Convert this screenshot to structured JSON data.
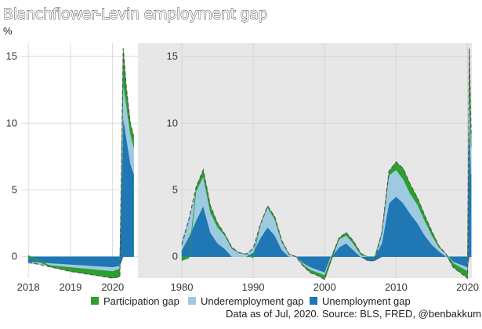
{
  "chart_data": [
    {
      "id": "recent",
      "type": "area",
      "stacked": true,
      "title": "Blanchflower-Levin employment gap",
      "ylabel": "%",
      "ylim": [
        -1.6,
        16
      ],
      "xlim": [
        2017.83,
        2020.6
      ],
      "yticks": [
        0,
        5,
        10,
        15
      ],
      "xticks": [
        2018,
        2019,
        2020
      ],
      "grid": true,
      "x": [
        2018.0,
        2018.5,
        2019.0,
        2019.5,
        2020.0,
        2020.17,
        2020.25,
        2020.33,
        2020.42,
        2020.5
      ],
      "series": [
        {
          "name": "Unemployment gap",
          "color": "#1f77b4",
          "values": [
            -0.4,
            -0.5,
            -0.6,
            -0.7,
            -0.8,
            -0.7,
            10.5,
            8.8,
            7.0,
            6.2
          ]
        },
        {
          "name": "Underemployment gap",
          "color": "#9ecae1",
          "values": [
            -0.1,
            -0.15,
            -0.2,
            -0.25,
            -0.3,
            -0.2,
            2.5,
            2.4,
            2.2,
            2.0
          ]
        },
        {
          "name": "Participation gap",
          "color": "#2ca02c",
          "values": [
            0.1,
            -0.1,
            -0.3,
            -0.4,
            -0.5,
            -0.6,
            2.6,
            1.3,
            0.8,
            0.8
          ]
        }
      ]
    },
    {
      "id": "history",
      "type": "area",
      "stacked": true,
      "ylim": [
        -1.6,
        16
      ],
      "xlim": [
        1980,
        2020.6
      ],
      "yticks": [
        0,
        5,
        10,
        15
      ],
      "xticks": [
        1980,
        1990,
        2000,
        2010,
        2020
      ],
      "grid": true,
      "x": [
        1980.0,
        1981.0,
        1982.0,
        1983.0,
        1984.0,
        1985.0,
        1986.0,
        1987.0,
        1988.0,
        1989.0,
        1990.0,
        1991.0,
        1992.0,
        1993.0,
        1994.0,
        1995.0,
        1996.0,
        1997.0,
        1998.0,
        1999.0,
        2000.0,
        2001.0,
        2002.0,
        2003.0,
        2004.0,
        2005.0,
        2006.0,
        2007.0,
        2008.0,
        2009.0,
        2010.0,
        2011.0,
        2012.0,
        2013.0,
        2014.0,
        2015.0,
        2016.0,
        2017.0,
        2018.0,
        2019.0,
        2020.0,
        2020.25,
        2020.5
      ],
      "series": [
        {
          "name": "Unemployment gap",
          "color": "#1f77b4",
          "values": [
            0.5,
            1.5,
            2.7,
            3.8,
            1.8,
            1.0,
            0.6,
            0.0,
            0.0,
            0.0,
            0.3,
            1.4,
            2.2,
            1.6,
            0.5,
            0.0,
            0.0,
            -0.5,
            -0.8,
            -1.0,
            -1.2,
            0.0,
            0.7,
            1.0,
            0.5,
            0.0,
            -0.3,
            -0.3,
            1.0,
            4.0,
            4.5,
            4.0,
            3.2,
            2.5,
            1.6,
            0.9,
            0.4,
            0.0,
            -0.4,
            -0.6,
            -0.8,
            10.5,
            6.2
          ]
        },
        {
          "name": "Underemployment gap",
          "color": "#9ecae1",
          "values": [
            0.7,
            1.4,
            2.2,
            2.2,
            1.5,
            1.2,
            1.0,
            0.6,
            0.3,
            0.2,
            0.4,
            1.0,
            1.5,
            1.2,
            0.6,
            0.2,
            0.0,
            -0.1,
            -0.2,
            -0.2,
            -0.2,
            0.2,
            0.6,
            0.6,
            0.5,
            0.2,
            0.0,
            0.0,
            0.8,
            2.1,
            2.0,
            1.8,
            1.5,
            1.4,
            1.1,
            0.7,
            0.3,
            0.2,
            -0.1,
            -0.2,
            -0.3,
            2.5,
            2.0
          ]
        },
        {
          "name": "Participation gap",
          "color": "#2ca02c",
          "values": [
            -0.3,
            -0.1,
            0.3,
            0.5,
            0.5,
            0.3,
            0.1,
            0.1,
            0.0,
            0.0,
            -0.1,
            0.0,
            0.1,
            0.2,
            0.1,
            0.0,
            0.0,
            -0.1,
            -0.2,
            -0.2,
            -0.3,
            -0.2,
            0.1,
            0.2,
            0.2,
            0.1,
            0.0,
            0.0,
            0.0,
            0.3,
            0.6,
            0.8,
            0.7,
            0.5,
            0.4,
            0.3,
            0.1,
            0.0,
            -0.3,
            -0.4,
            -0.5,
            2.6,
            0.8
          ]
        }
      ]
    }
  ],
  "legend": {
    "position": "bottom",
    "items": [
      {
        "label": "Participation gap",
        "color": "#2ca02c"
      },
      {
        "label": "Underemployment gap",
        "color": "#9ecae1"
      },
      {
        "label": "Unemployment gap",
        "color": "#1f77b4"
      }
    ]
  },
  "source": "Data as of Jul, 2020. Source: BLS, FRED, @benbakkum."
}
